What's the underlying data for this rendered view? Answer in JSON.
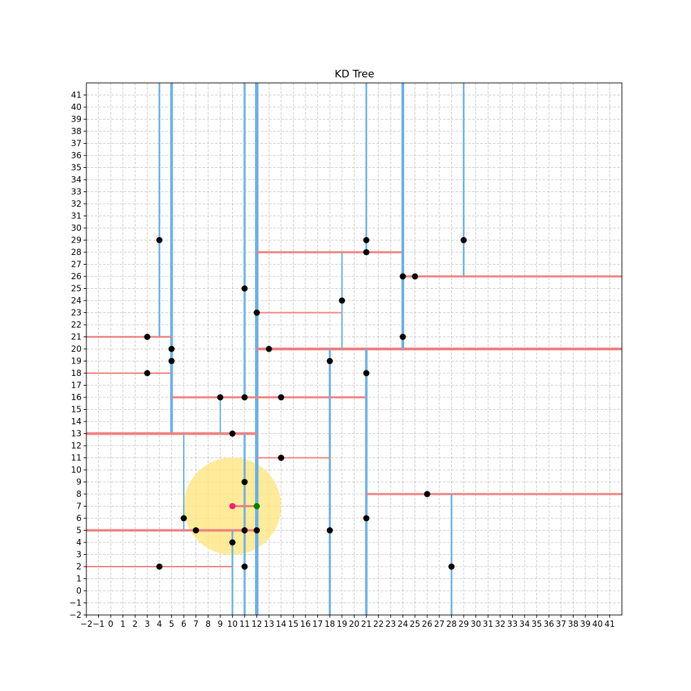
{
  "chart_data": {
    "type": "scatter",
    "title": "KD Tree",
    "xlabel": "",
    "ylabel": "",
    "xlim": [
      -2,
      42
    ],
    "ylim": [
      -2,
      42
    ],
    "grid": true,
    "xticks": [
      -2,
      -1,
      0,
      1,
      2,
      3,
      4,
      5,
      6,
      7,
      8,
      9,
      10,
      11,
      12,
      13,
      14,
      15,
      16,
      17,
      18,
      19,
      20,
      21,
      22,
      23,
      24,
      25,
      26,
      27,
      28,
      29,
      30,
      31,
      32,
      33,
      34,
      35,
      36,
      37,
      38,
      39,
      40,
      41
    ],
    "yticks": [
      -2,
      -1,
      0,
      1,
      2,
      3,
      4,
      5,
      6,
      7,
      8,
      9,
      10,
      11,
      12,
      13,
      14,
      15,
      16,
      17,
      18,
      19,
      20,
      21,
      22,
      23,
      24,
      25,
      26,
      27,
      28,
      29,
      30,
      31,
      32,
      33,
      34,
      35,
      36,
      37,
      38,
      39,
      40,
      41
    ],
    "points": [
      [
        4,
        29
      ],
      [
        3,
        21
      ],
      [
        5,
        20
      ],
      [
        5,
        19
      ],
      [
        3,
        18
      ],
      [
        9,
        16
      ],
      [
        11,
        16
      ],
      [
        14,
        16
      ],
      [
        10,
        13
      ],
      [
        11,
        25
      ],
      [
        12,
        23
      ],
      [
        13,
        20
      ],
      [
        19,
        24
      ],
      [
        21,
        29
      ],
      [
        21,
        28
      ],
      [
        24,
        26
      ],
      [
        25,
        26
      ],
      [
        29,
        29
      ],
      [
        24,
        21
      ],
      [
        18,
        19
      ],
      [
        21,
        18
      ],
      [
        14,
        11
      ],
      [
        11,
        9
      ],
      [
        6,
        6
      ],
      [
        7,
        5
      ],
      [
        11,
        5
      ],
      [
        12,
        5
      ],
      [
        10,
        4
      ],
      [
        4,
        2
      ],
      [
        11,
        2
      ],
      [
        18,
        5
      ],
      [
        21,
        6
      ],
      [
        26,
        8
      ],
      [
        28,
        2
      ]
    ],
    "query_point": [
      10,
      7
    ],
    "nearest_point": [
      12,
      7
    ],
    "search_radius": 4,
    "colors": {
      "vertical_split": "#6ab0e8",
      "horizontal_split": "#f08080",
      "points": "#000000",
      "query": "#ff1a75",
      "nearest": "#008000",
      "search_circle": "#ffe680",
      "grid": "#c0c0c0"
    },
    "splits": [
      {
        "orient": "v",
        "at": 12,
        "from": -2,
        "to": 42,
        "w": 5
      },
      {
        "orient": "v",
        "at": 5,
        "from": 13,
        "to": 42,
        "w": 4
      },
      {
        "orient": "h",
        "at": 13,
        "from": -2,
        "to": 12,
        "w": 4
      },
      {
        "orient": "v",
        "at": 4,
        "from": 21,
        "to": 42,
        "w": 2.5
      },
      {
        "orient": "h",
        "at": 21,
        "from": -2,
        "to": 5,
        "w": 2.5
      },
      {
        "orient": "h",
        "at": 18,
        "from": -2,
        "to": 5,
        "w": 2
      },
      {
        "orient": "h",
        "at": 16,
        "from": 5,
        "to": 21,
        "w": 3
      },
      {
        "orient": "v",
        "at": 9,
        "from": 13,
        "to": 16,
        "w": 2
      },
      {
        "orient": "v",
        "at": 11,
        "from": 16,
        "to": 42,
        "w": 3
      },
      {
        "orient": "h",
        "at": 20,
        "from": 12,
        "to": 42,
        "w": 4
      },
      {
        "orient": "h",
        "at": 28,
        "from": 12,
        "to": 24,
        "w": 3
      },
      {
        "orient": "h",
        "at": 23,
        "from": 12,
        "to": 19,
        "w": 2
      },
      {
        "orient": "v",
        "at": 19,
        "from": 20,
        "to": 28,
        "w": 2
      },
      {
        "orient": "v",
        "at": 24,
        "from": 20,
        "to": 42,
        "w": 4
      },
      {
        "orient": "v",
        "at": 21,
        "from": 28,
        "to": 42,
        "w": 2.5
      },
      {
        "orient": "h",
        "at": 26,
        "from": 24,
        "to": 42,
        "w": 3
      },
      {
        "orient": "v",
        "at": 29,
        "from": 26,
        "to": 42,
        "w": 2.5
      },
      {
        "orient": "v",
        "at": 18,
        "from": -2,
        "to": 20,
        "w": 3
      },
      {
        "orient": "v",
        "at": 21,
        "from": -2,
        "to": 20,
        "w": 3.5
      },
      {
        "orient": "h",
        "at": 11,
        "from": 12,
        "to": 18,
        "w": 2
      },
      {
        "orient": "h",
        "at": 8,
        "from": 21,
        "to": 42,
        "w": 3
      },
      {
        "orient": "v",
        "at": 28,
        "from": -2,
        "to": 8,
        "w": 2.5
      },
      {
        "orient": "h",
        "at": 5,
        "from": -2,
        "to": 12,
        "w": 3.5
      },
      {
        "orient": "v",
        "at": 6,
        "from": 5,
        "to": 13,
        "w": 2
      },
      {
        "orient": "v",
        "at": 11,
        "from": -2,
        "to": 13,
        "w": 3
      },
      {
        "orient": "h",
        "at": 2,
        "from": -2,
        "to": 10,
        "w": 2
      },
      {
        "orient": "v",
        "at": 10,
        "from": -2,
        "to": 5,
        "w": 2.5
      },
      {
        "orient": "h",
        "at": 7,
        "from": 10,
        "to": 12,
        "w": 3
      }
    ]
  }
}
